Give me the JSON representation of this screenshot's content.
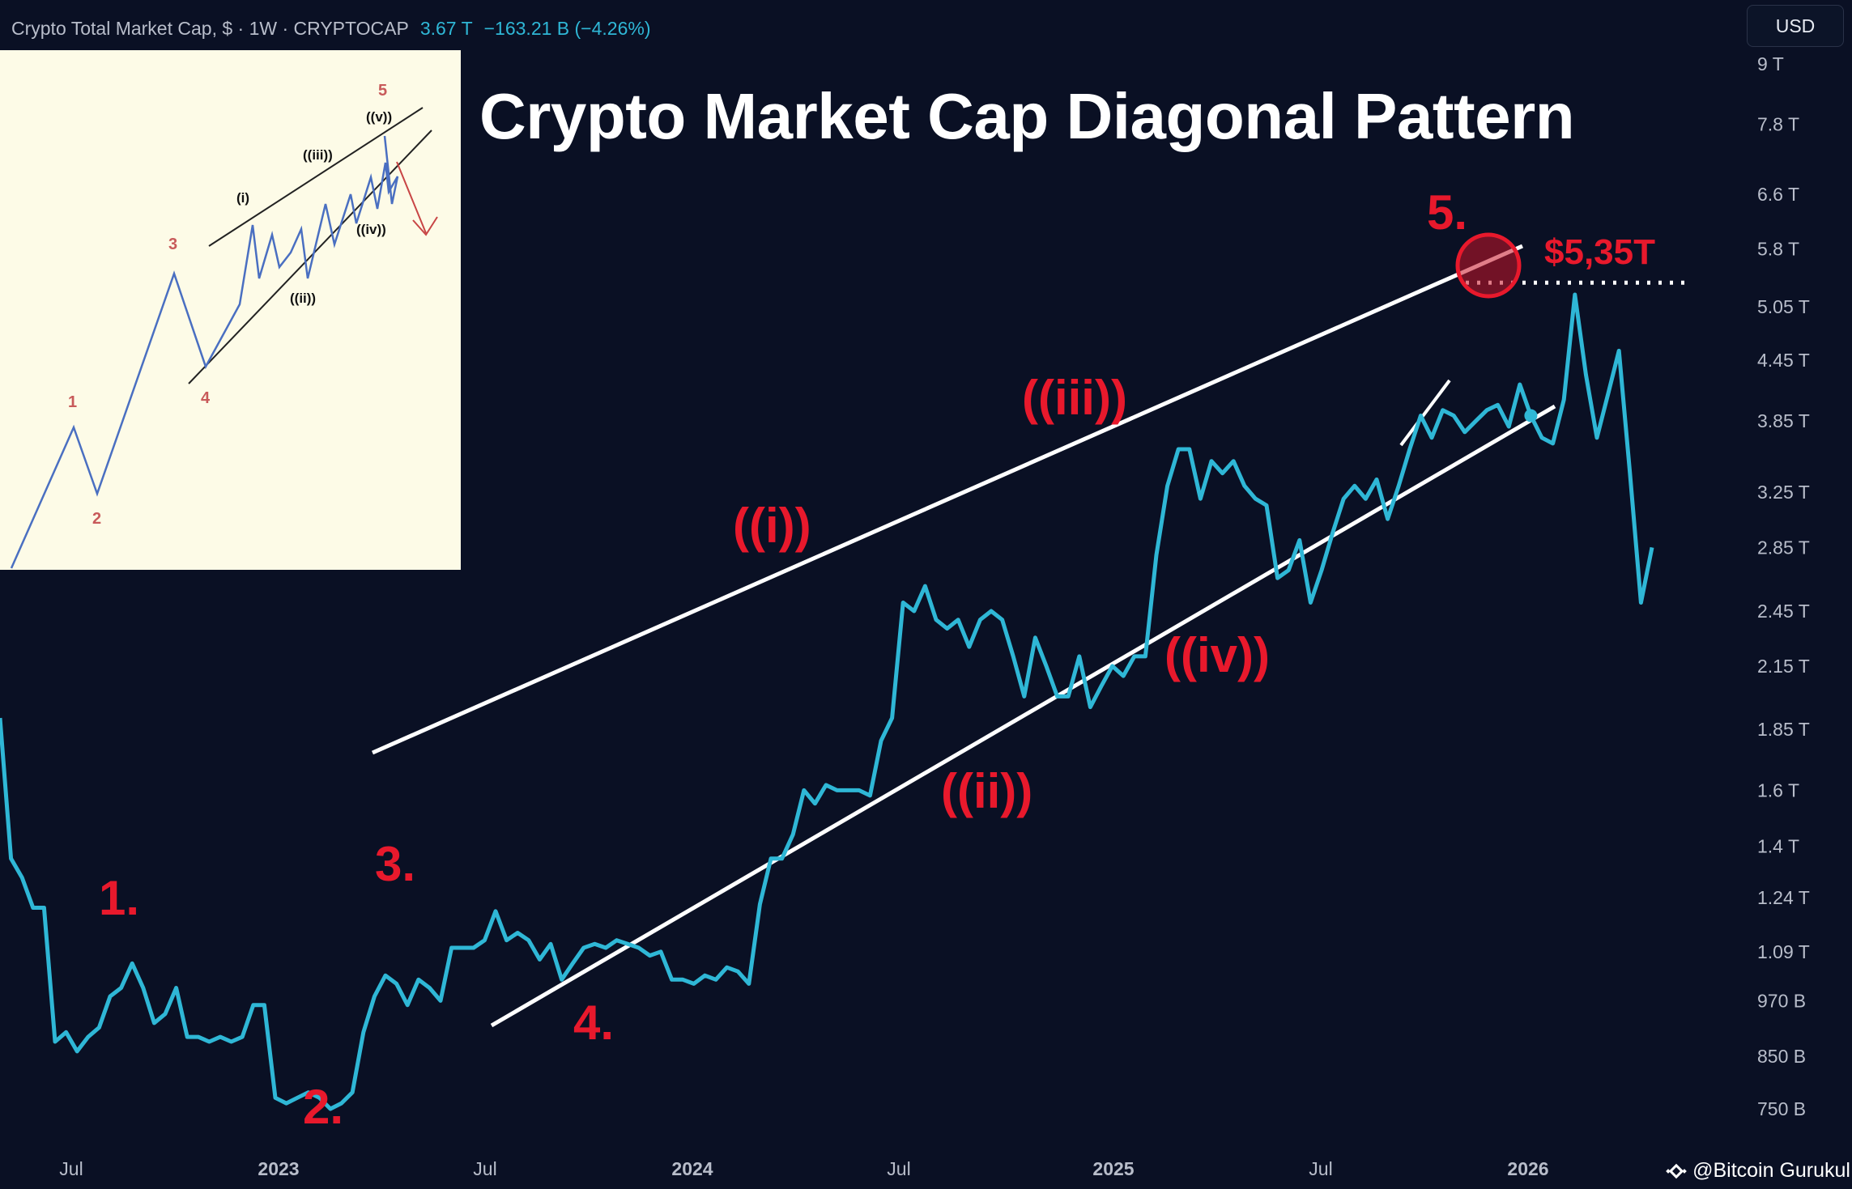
{
  "header": {
    "symbol": "Crypto Total Market Cap, $ · 1W · CRYPTOCAP",
    "last_value": "3.67 T",
    "change": "−163.21 B (−4.26%)"
  },
  "currency_button": "USD",
  "title": "Crypto Market Cap Diagonal Pattern",
  "watermark": "@Bitcoin Gurukul",
  "colors": {
    "background": "#0a1024",
    "series": "#2fb7d6",
    "channel": "#ffffff",
    "wave_labels": "#e8192c",
    "inset_background": "#fdfbe7"
  },
  "chart_data": {
    "type": "line",
    "ylabel": "",
    "xlabel": "",
    "y_scale": "log",
    "x_tick_labels": [
      "Jul",
      "2023",
      "Jul",
      "2024",
      "Jul",
      "2025",
      "Jul",
      "2026"
    ],
    "y_tick_labels": [
      "9 T",
      "7.8 T",
      "6.6 T",
      "5.8 T",
      "5.05 T",
      "4.45 T",
      "3.85 T",
      "3.25 T",
      "2.85 T",
      "2.45 T",
      "2.15 T",
      "1.85 T",
      "1.6 T",
      "1.4 T",
      "1.24 T",
      "1.09 T",
      "970 B",
      "850 B",
      "750 B"
    ],
    "series": [
      {
        "values_T": [
          1.9,
          1.36,
          1.3,
          1.21,
          1.21,
          0.88,
          0.9,
          0.86,
          0.89,
          0.91,
          0.98,
          1.0,
          1.06,
          1.0,
          0.92,
          0.94,
          1.0,
          0.89,
          0.89,
          0.88,
          0.89,
          0.88,
          0.89,
          0.96,
          0.96,
          0.77,
          0.76,
          0.77,
          0.78,
          0.77,
          0.75,
          0.76,
          0.78,
          0.9,
          0.98,
          1.03,
          1.01,
          0.96,
          1.02,
          1.0,
          0.97,
          1.1,
          1.1,
          1.1,
          1.12,
          1.2,
          1.12,
          1.14,
          1.12,
          1.07,
          1.11,
          1.02,
          1.06,
          1.1,
          1.11,
          1.1,
          1.12,
          1.11,
          1.1,
          1.08,
          1.09,
          1.02,
          1.02,
          1.01,
          1.03,
          1.02,
          1.05,
          1.04,
          1.01,
          1.22,
          1.36,
          1.36,
          1.44,
          1.6,
          1.55,
          1.62,
          1.6,
          1.6,
          1.6,
          1.58,
          1.8,
          1.9,
          2.5,
          2.45,
          2.6,
          2.4,
          2.35,
          2.4,
          2.25,
          2.4,
          2.45,
          2.4,
          2.2,
          2.0,
          2.3,
          2.15,
          2.0,
          2.0,
          2.2,
          1.95,
          2.05,
          2.15,
          2.1,
          2.2,
          2.2,
          2.8,
          3.3,
          3.6,
          3.6,
          3.2,
          3.5,
          3.4,
          3.5,
          3.3,
          3.2,
          3.15,
          2.65,
          2.7,
          2.9,
          2.5,
          2.7,
          2.95,
          3.2,
          3.3,
          3.2,
          3.35,
          3.05,
          3.3,
          3.6,
          3.9,
          3.7,
          3.95,
          3.9,
          3.75,
          3.85,
          3.95,
          4.0,
          3.8,
          4.2,
          3.9,
          3.7,
          3.65,
          4.05,
          5.2,
          4.3,
          3.7,
          4.1,
          4.55,
          3.4,
          2.5,
          2.85
        ],
        "projection_start_index": 139
      }
    ],
    "wave_labels": [
      "1.",
      "2.",
      "3.",
      "4.",
      "5.",
      "((i))",
      "((ii))",
      "((iii))",
      "((iv))"
    ],
    "target_label": "$5,35T",
    "target_value_T": 5.35,
    "channel": "rising wedge (ending diagonal)"
  },
  "inset": {
    "wave_labels_red": [
      "1",
      "2",
      "3",
      "4",
      "5"
    ],
    "wave_labels_black": [
      "(i)",
      "((ii))",
      "((iii))",
      "((iv))",
      "((v))"
    ]
  }
}
